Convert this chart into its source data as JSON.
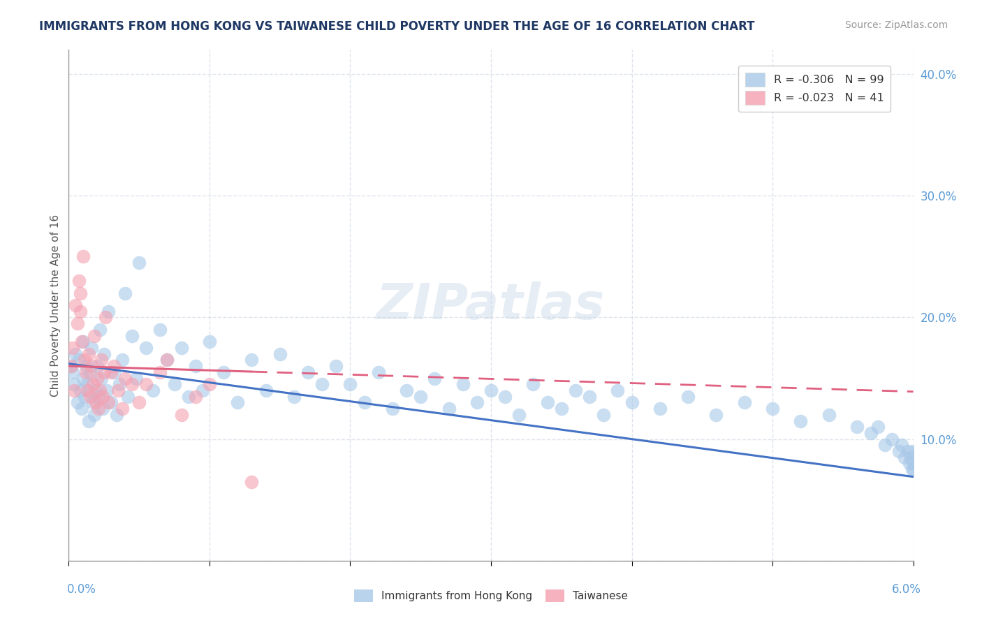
{
  "title": "IMMIGRANTS FROM HONG KONG VS TAIWANESE CHILD POVERTY UNDER THE AGE OF 16 CORRELATION CHART",
  "source": "Source: ZipAtlas.com",
  "ylabel": "Child Poverty Under the Age of 16",
  "xlim": [
    0.0,
    6.0
  ],
  "ylim": [
    0.0,
    42.0
  ],
  "hk_color": "#a8c8e8",
  "tw_color": "#f4a0b0",
  "hk_trend_color": "#4472c4",
  "tw_trend_color": "#e06080",
  "watermark_text": "ZIPatlas",
  "background_color": "#ffffff",
  "grid_color": "#d8dce8",
  "legend_entries": [
    {
      "label": "R = -0.306   N = 99",
      "color": "#a8c8e8"
    },
    {
      "label": "R = -0.023   N = 41",
      "color": "#f4a0b0"
    }
  ],
  "hk_scatter_x": [
    0.02,
    0.03,
    0.04,
    0.05,
    0.06,
    0.07,
    0.08,
    0.09,
    0.1,
    0.1,
    0.11,
    0.12,
    0.13,
    0.14,
    0.15,
    0.16,
    0.17,
    0.18,
    0.19,
    0.2,
    0.21,
    0.22,
    0.23,
    0.24,
    0.25,
    0.27,
    0.28,
    0.3,
    0.32,
    0.34,
    0.36,
    0.38,
    0.4,
    0.42,
    0.45,
    0.48,
    0.5,
    0.55,
    0.6,
    0.65,
    0.7,
    0.75,
    0.8,
    0.85,
    0.9,
    0.95,
    1.0,
    1.1,
    1.2,
    1.3,
    1.4,
    1.5,
    1.6,
    1.7,
    1.8,
    1.9,
    2.0,
    2.1,
    2.2,
    2.3,
    2.4,
    2.5,
    2.6,
    2.7,
    2.8,
    2.9,
    3.0,
    3.1,
    3.2,
    3.3,
    3.4,
    3.5,
    3.6,
    3.7,
    3.8,
    3.9,
    4.0,
    4.2,
    4.4,
    4.6,
    4.8,
    5.0,
    5.2,
    5.4,
    5.6,
    5.7,
    5.75,
    5.8,
    5.85,
    5.9,
    5.92,
    5.94,
    5.96,
    5.97,
    5.98,
    5.99,
    6.0,
    6.0,
    6.0
  ],
  "hk_scatter_y": [
    16.0,
    15.5,
    14.5,
    17.0,
    13.0,
    16.5,
    14.0,
    12.5,
    15.0,
    18.0,
    13.5,
    16.0,
    14.5,
    11.5,
    15.5,
    17.5,
    13.0,
    12.0,
    14.0,
    16.0,
    13.5,
    19.0,
    15.0,
    12.5,
    17.0,
    14.0,
    20.5,
    13.0,
    15.5,
    12.0,
    14.5,
    16.5,
    22.0,
    13.5,
    18.5,
    15.0,
    24.5,
    17.5,
    14.0,
    19.0,
    16.5,
    14.5,
    17.5,
    13.5,
    16.0,
    14.0,
    18.0,
    15.5,
    13.0,
    16.5,
    14.0,
    17.0,
    13.5,
    15.5,
    14.5,
    16.0,
    14.5,
    13.0,
    15.5,
    12.5,
    14.0,
    13.5,
    15.0,
    12.5,
    14.5,
    13.0,
    14.0,
    13.5,
    12.0,
    14.5,
    13.0,
    12.5,
    14.0,
    13.5,
    12.0,
    14.0,
    13.0,
    12.5,
    13.5,
    12.0,
    13.0,
    12.5,
    11.5,
    12.0,
    11.0,
    10.5,
    11.0,
    9.5,
    10.0,
    9.0,
    9.5,
    8.5,
    9.0,
    8.0,
    8.5,
    7.5,
    8.0,
    9.0,
    7.5
  ],
  "tw_scatter_x": [
    0.02,
    0.03,
    0.04,
    0.05,
    0.06,
    0.07,
    0.08,
    0.08,
    0.09,
    0.1,
    0.11,
    0.12,
    0.13,
    0.14,
    0.15,
    0.16,
    0.17,
    0.18,
    0.19,
    0.2,
    0.21,
    0.22,
    0.23,
    0.24,
    0.25,
    0.26,
    0.28,
    0.3,
    0.32,
    0.35,
    0.38,
    0.4,
    0.45,
    0.5,
    0.55,
    0.65,
    0.7,
    0.8,
    0.9,
    1.0,
    1.3
  ],
  "tw_scatter_y": [
    16.0,
    17.5,
    14.0,
    21.0,
    19.5,
    23.0,
    20.5,
    22.0,
    18.0,
    25.0,
    16.5,
    15.5,
    14.0,
    17.0,
    13.5,
    16.0,
    14.5,
    18.5,
    13.0,
    15.0,
    12.5,
    14.0,
    16.5,
    13.5,
    15.5,
    20.0,
    13.0,
    15.5,
    16.0,
    14.0,
    12.5,
    15.0,
    14.5,
    13.0,
    14.5,
    15.5,
    16.5,
    12.0,
    13.5,
    14.5,
    6.5
  ],
  "hk_trend_intercept": 16.2,
  "hk_trend_slope": -1.55,
  "tw_trend_intercept": 16.0,
  "tw_trend_slope": -0.35
}
